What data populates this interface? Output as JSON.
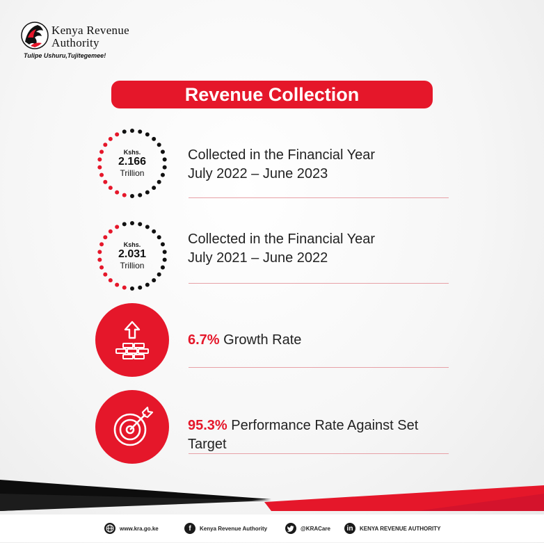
{
  "brand": {
    "name_line1": "Kenya Revenue",
    "name_line2": "Authority",
    "tagline": "Tulipe Ushuru,Tujitegemee!"
  },
  "title": "Revenue Collection",
  "stats": [
    {
      "prefix": "Kshs.",
      "value": "2.166",
      "unit": "Trillion",
      "line1": "Collected in the Financial Year",
      "line2": "July 2022 – June 2023"
    },
    {
      "prefix": "Kshs.",
      "value": "2.031",
      "unit": "Trillion",
      "line1": "Collected in the Financial Year",
      "line2": "July 2021 – June 2022"
    }
  ],
  "growth": {
    "value": "6.7%",
    "label": "Growth Rate",
    "icon": "growth-coins-icon"
  },
  "performance": {
    "value": "95.3%",
    "label": "Performance Rate Against Set Target",
    "icon": "target-icon"
  },
  "colors": {
    "accent": "#e5172a",
    "dark": "#111111"
  },
  "footer": {
    "website": "www.kra.go.ke",
    "facebook": "Kenya Revenue Authority",
    "twitter": "@KRACare",
    "linkedin": "KENYA REVENUE AUTHORITY"
  }
}
